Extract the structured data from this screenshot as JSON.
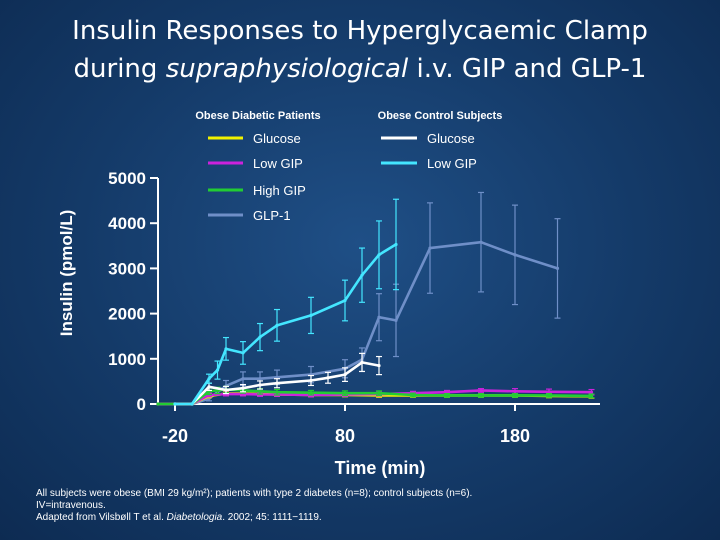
{
  "title": {
    "line1": "Insulin Responses to Hyperglycaemic Clamp",
    "line2_pre": "during ",
    "line2_em": "supraphysiological",
    "line2_post": " i.v. GIP and GLP-1"
  },
  "legend": {
    "group1_title": "Obese Diabetic Patients",
    "group2_title": "Obese Control Subjects"
  },
  "colors": {
    "yellow": "#f2f200",
    "magenta": "#cc22dd",
    "green": "#22cc33",
    "steel": "#6f8fc8",
    "white": "#ffffff",
    "cyan": "#44e6ff"
  },
  "chart_data": {
    "type": "line",
    "xlabel": "Time (min)",
    "ylabel": "Insulin (pmol/L)",
    "xlim": [
      -30,
      230
    ],
    "ylim": [
      0,
      5000
    ],
    "x_ticks": [
      -20,
      80,
      180
    ],
    "y_ticks": [
      0,
      1000,
      2000,
      3000,
      4000,
      5000
    ],
    "series": [
      {
        "name": "Glucose",
        "group": "Obese Diabetic Patients",
        "color": "#f2f200",
        "points": [
          [
            -30,
            0
          ],
          [
            -20,
            0
          ],
          [
            -10,
            0
          ],
          [
            0,
            180
          ],
          [
            10,
            230
          ],
          [
            20,
            230
          ],
          [
            30,
            220
          ],
          [
            40,
            210
          ],
          [
            60,
            200
          ],
          [
            80,
            200
          ],
          [
            100,
            190
          ],
          [
            120,
            190
          ],
          [
            140,
            190
          ],
          [
            160,
            190
          ],
          [
            180,
            190
          ],
          [
            200,
            180
          ],
          [
            225,
            170
          ]
        ],
        "errors": [
          0,
          0,
          0,
          40,
          40,
          40,
          40,
          40,
          40,
          40,
          40,
          40,
          40,
          40,
          40,
          40,
          40
        ]
      },
      {
        "name": "Low GIP",
        "group": "Obese Diabetic Patients",
        "color": "#cc22dd",
        "points": [
          [
            -30,
            0
          ],
          [
            -20,
            0
          ],
          [
            -10,
            0
          ],
          [
            0,
            200
          ],
          [
            10,
            220
          ],
          [
            20,
            220
          ],
          [
            30,
            210
          ],
          [
            40,
            210
          ],
          [
            60,
            200
          ],
          [
            80,
            210
          ],
          [
            100,
            220
          ],
          [
            120,
            240
          ],
          [
            140,
            260
          ],
          [
            160,
            300
          ],
          [
            180,
            280
          ],
          [
            200,
            270
          ],
          [
            225,
            260
          ]
        ],
        "errors": [
          0,
          0,
          0,
          40,
          40,
          40,
          40,
          40,
          40,
          40,
          40,
          40,
          40,
          40,
          60,
          60,
          60
        ]
      },
      {
        "name": "High GIP",
        "group": "Obese Diabetic Patients",
        "color": "#22cc33",
        "points": [
          [
            -30,
            0
          ],
          [
            -20,
            0
          ],
          [
            -10,
            0
          ],
          [
            0,
            280
          ],
          [
            5,
            300
          ],
          [
            10,
            320
          ],
          [
            20,
            300
          ],
          [
            30,
            280
          ],
          [
            40,
            260
          ],
          [
            60,
            250
          ],
          [
            80,
            240
          ],
          [
            100,
            240
          ],
          [
            120,
            200
          ],
          [
            140,
            190
          ],
          [
            160,
            190
          ],
          [
            180,
            190
          ],
          [
            200,
            190
          ],
          [
            225,
            180
          ]
        ],
        "errors": [
          0,
          0,
          0,
          70,
          70,
          70,
          60,
          60,
          60,
          50,
          50,
          50,
          40,
          40,
          40,
          40,
          40,
          40
        ]
      },
      {
        "name": "GLP-1",
        "group": "Obese Diabetic Patients",
        "color": "#6f8fc8",
        "points": [
          [
            -30,
            0
          ],
          [
            -20,
            0
          ],
          [
            -10,
            0
          ],
          [
            0,
            120
          ],
          [
            10,
            400
          ],
          [
            20,
            560
          ],
          [
            30,
            560
          ],
          [
            40,
            590
          ],
          [
            60,
            650
          ],
          [
            80,
            780
          ],
          [
            90,
            980
          ],
          [
            100,
            1920
          ],
          [
            110,
            1850
          ],
          [
            130,
            3450
          ],
          [
            160,
            3580
          ],
          [
            180,
            3300
          ],
          [
            205,
            3000
          ]
        ],
        "errors": [
          0,
          0,
          0,
          50,
          120,
          150,
          150,
          160,
          180,
          200,
          260,
          520,
          800,
          1000,
          1100,
          1100,
          1100
        ]
      },
      {
        "name": "Glucose",
        "group": "Obese Control Subjects",
        "color": "#ffffff",
        "points": [
          [
            -20,
            0
          ],
          [
            -10,
            0
          ],
          [
            0,
            380
          ],
          [
            10,
            310
          ],
          [
            20,
            350
          ],
          [
            30,
            420
          ],
          [
            40,
            460
          ],
          [
            60,
            520
          ],
          [
            70,
            580
          ],
          [
            80,
            650
          ],
          [
            90,
            920
          ],
          [
            100,
            850
          ]
        ],
        "errors": [
          0,
          0,
          80,
          80,
          80,
          90,
          100,
          110,
          120,
          150,
          200,
          200
        ]
      },
      {
        "name": "Low GIP",
        "group": "Obese Control Subjects",
        "color": "#44e6ff",
        "points": [
          [
            -20,
            0
          ],
          [
            -10,
            0
          ],
          [
            0,
            560
          ],
          [
            5,
            750
          ],
          [
            10,
            1220
          ],
          [
            20,
            1130
          ],
          [
            30,
            1480
          ],
          [
            40,
            1740
          ],
          [
            60,
            1960
          ],
          [
            80,
            2290
          ],
          [
            90,
            2850
          ],
          [
            100,
            3300
          ],
          [
            110,
            3530
          ]
        ],
        "errors": [
          0,
          0,
          100,
          200,
          250,
          250,
          300,
          350,
          400,
          450,
          600,
          750,
          1000
        ]
      }
    ]
  },
  "footnote": {
    "line1": "All subjects were obese (BMI 29 kg/m²); patients with type 2 diabetes (n=8); control subjects (n=6).",
    "line2": "IV=intravenous.",
    "line3_pre": "Adapted from Vilsbøll T et al. ",
    "line3_em": "Diabetologia",
    "line3_post": ". 2002; 45: 1111−1119."
  }
}
